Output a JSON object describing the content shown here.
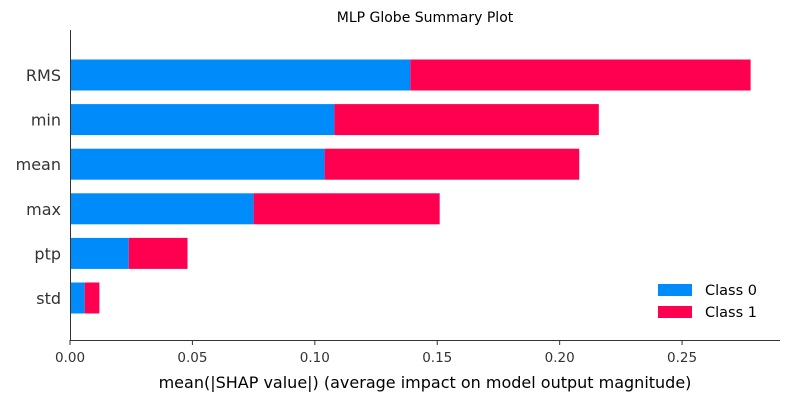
{
  "chart_data": {
    "type": "bar",
    "orientation": "horizontal",
    "stacked": true,
    "title": "MLP Globe Summary Plot",
    "xlabel": "mean(|SHAP value|) (average impact on model output magnitude)",
    "ylabel": "",
    "xlim": [
      0,
      0.29
    ],
    "xticks": [
      0.0,
      0.05,
      0.1,
      0.15,
      0.2,
      0.25
    ],
    "xtick_labels": [
      "0.00",
      "0.05",
      "0.10",
      "0.15",
      "0.20",
      "0.25"
    ],
    "categories": [
      "RMS",
      "min",
      "mean",
      "max",
      "ptp",
      "std"
    ],
    "series": [
      {
        "name": "Class 0",
        "color": "#008bfb",
        "values": [
          0.139,
          0.108,
          0.104,
          0.075,
          0.024,
          0.006
        ]
      },
      {
        "name": "Class 1",
        "color": "#ff0051",
        "values": [
          0.139,
          0.108,
          0.104,
          0.076,
          0.024,
          0.006
        ]
      }
    ],
    "legend_position": "bottom-right",
    "grid": false
  }
}
